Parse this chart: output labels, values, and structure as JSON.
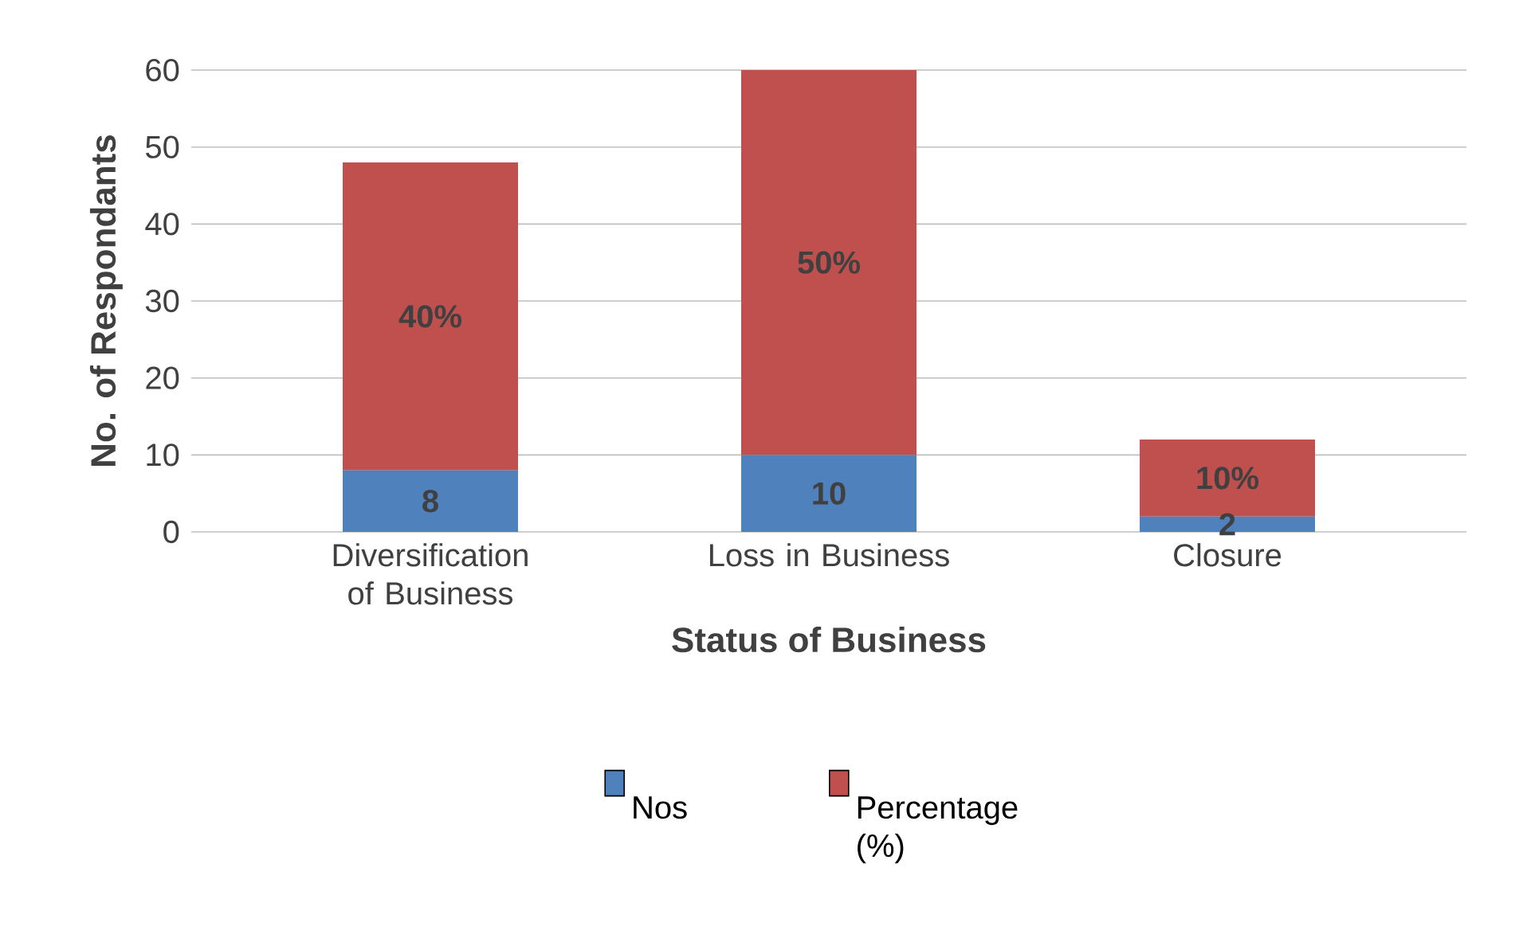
{
  "chart_data": {
    "type": "bar",
    "stacked": true,
    "xlabel": "Status of Business",
    "ylabel": "No. of Respondants",
    "categories": [
      "Diversification of Business",
      "Loss in Business",
      "Closure"
    ],
    "series": [
      {
        "name": "Nos",
        "color": "#4f81bd",
        "values": [
          8,
          10,
          2
        ],
        "value_labels": [
          "8",
          "10",
          "2"
        ]
      },
      {
        "name": "Percentage (%)",
        "color": "#c0504d",
        "values": [
          40,
          50,
          10
        ],
        "value_labels": [
          "40%",
          "50%",
          "10%"
        ]
      }
    ],
    "ylim": [
      0,
      60
    ],
    "yticks": [
      0,
      10,
      20,
      30,
      40,
      50,
      60
    ],
    "grid": "y",
    "legend": "bottom"
  }
}
